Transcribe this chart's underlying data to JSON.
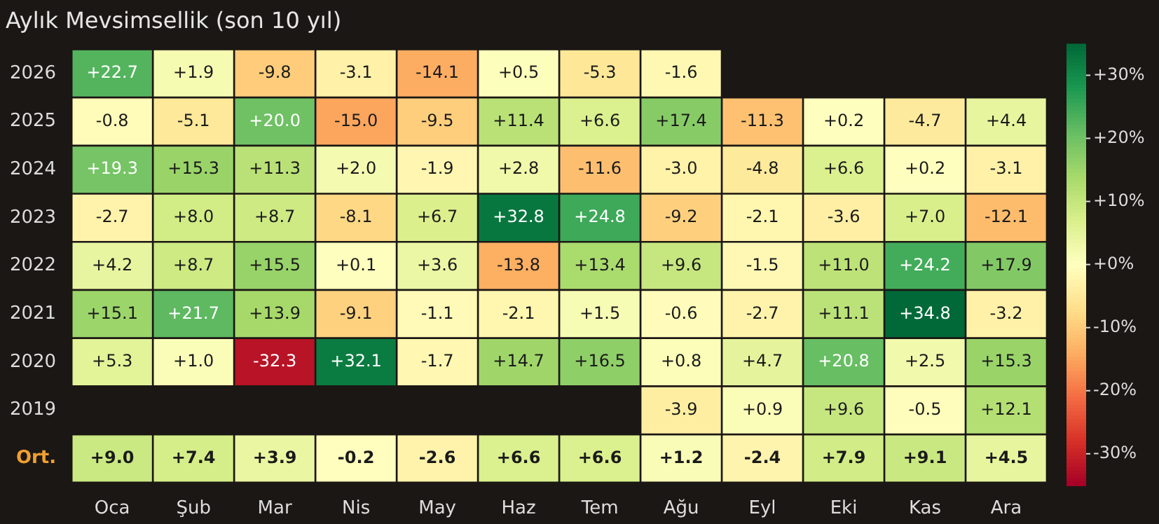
{
  "chart_data": {
    "type": "heatmap",
    "title": "Aylık Mevsimsellik (son 10 yıl)",
    "categories": [
      "Oca",
      "Şub",
      "Mar",
      "Nis",
      "May",
      "Haz",
      "Tem",
      "Ağu",
      "Eyl",
      "Eki",
      "Kas",
      "Ara"
    ],
    "y_categories": [
      "2026",
      "2025",
      "2024",
      "2023",
      "2022",
      "2021",
      "2020",
      "2019",
      "Ort."
    ],
    "cells": [
      [
        22.7,
        1.9,
        -9.8,
        -3.1,
        -14.1,
        0.5,
        -5.3,
        -1.6,
        null,
        null,
        null,
        null
      ],
      [
        -0.8,
        -5.1,
        20.0,
        -15.0,
        -9.5,
        11.4,
        6.6,
        17.4,
        -11.3,
        0.2,
        -4.7,
        4.4
      ],
      [
        19.3,
        15.3,
        11.3,
        2.0,
        -1.9,
        2.8,
        -11.6,
        -3.0,
        -4.8,
        6.6,
        0.2,
        -3.1
      ],
      [
        -2.7,
        8.0,
        8.7,
        -8.1,
        6.7,
        32.8,
        24.8,
        -9.2,
        -2.1,
        -3.6,
        7.0,
        -12.1
      ],
      [
        4.2,
        8.7,
        15.5,
        0.1,
        3.6,
        -13.8,
        13.4,
        9.6,
        -1.5,
        11.0,
        24.2,
        17.9
      ],
      [
        15.1,
        21.7,
        13.9,
        -9.1,
        -1.1,
        -2.1,
        1.5,
        -0.6,
        -2.7,
        11.1,
        34.8,
        -3.2
      ],
      [
        5.3,
        1.0,
        -32.3,
        32.1,
        -1.7,
        14.7,
        16.5,
        0.8,
        4.7,
        20.8,
        2.5,
        15.3
      ],
      [
        null,
        null,
        null,
        null,
        null,
        null,
        null,
        -3.9,
        0.9,
        9.6,
        -0.5,
        12.1
      ],
      [
        9.0,
        7.4,
        3.9,
        -0.2,
        -2.6,
        6.6,
        6.6,
        1.2,
        -2.4,
        7.9,
        9.1,
        4.5
      ]
    ],
    "cell_labels": [
      [
        "+22.7",
        "+1.9",
        "-9.8",
        "-3.1",
        "-14.1",
        "+0.5",
        "-5.3",
        "-1.6",
        null,
        null,
        null,
        null
      ],
      [
        "-0.8",
        "-5.1",
        "+20.0",
        "-15.0",
        "-9.5",
        "+11.4",
        "+6.6",
        "+17.4",
        "-11.3",
        "+0.2",
        "-4.7",
        "+4.4"
      ],
      [
        "+19.3",
        "+15.3",
        "+11.3",
        "+2.0",
        "-1.9",
        "+2.8",
        "-11.6",
        "-3.0",
        "-4.8",
        "+6.6",
        "+0.2",
        "-3.1"
      ],
      [
        "-2.7",
        "+8.0",
        "+8.7",
        "-8.1",
        "+6.7",
        "+32.8",
        "+24.8",
        "-9.2",
        "-2.1",
        "-3.6",
        "+7.0",
        "-12.1"
      ],
      [
        "+4.2",
        "+8.7",
        "+15.5",
        "+0.1",
        "+3.6",
        "-13.8",
        "+13.4",
        "+9.6",
        "-1.5",
        "+11.0",
        "+24.2",
        "+17.9"
      ],
      [
        "+15.1",
        "+21.7",
        "+13.9",
        "-9.1",
        "-1.1",
        "-2.1",
        "+1.5",
        "-0.6",
        "-2.7",
        "+11.1",
        "+34.8",
        "-3.2"
      ],
      [
        "+5.3",
        "+1.0",
        "-32.3",
        "+32.1",
        "-1.7",
        "+14.7",
        "+16.5",
        "+0.8",
        "+4.7",
        "+20.8",
        "+2.5",
        "+15.3"
      ],
      [
        null,
        null,
        null,
        null,
        null,
        null,
        null,
        "-3.9",
        "+0.9",
        "+9.6",
        "-0.5",
        "+12.1"
      ],
      [
        "+9.0",
        "+7.4",
        "+3.9",
        "-0.2",
        "-2.6",
        "+6.6",
        "+6.6",
        "+1.2",
        "-2.4",
        "+7.9",
        "+9.1",
        "+4.5"
      ]
    ],
    "clim": [
      -35,
      35
    ],
    "cticks": [
      {
        "value": 30,
        "label": "+30%"
      },
      {
        "value": 20,
        "label": "+20%"
      },
      {
        "value": 10,
        "label": "+10%"
      },
      {
        "value": 0,
        "label": "+0%"
      },
      {
        "value": -10,
        "label": "-10%"
      },
      {
        "value": -20,
        "label": "-20%"
      },
      {
        "value": -30,
        "label": "-30%"
      }
    ]
  }
}
